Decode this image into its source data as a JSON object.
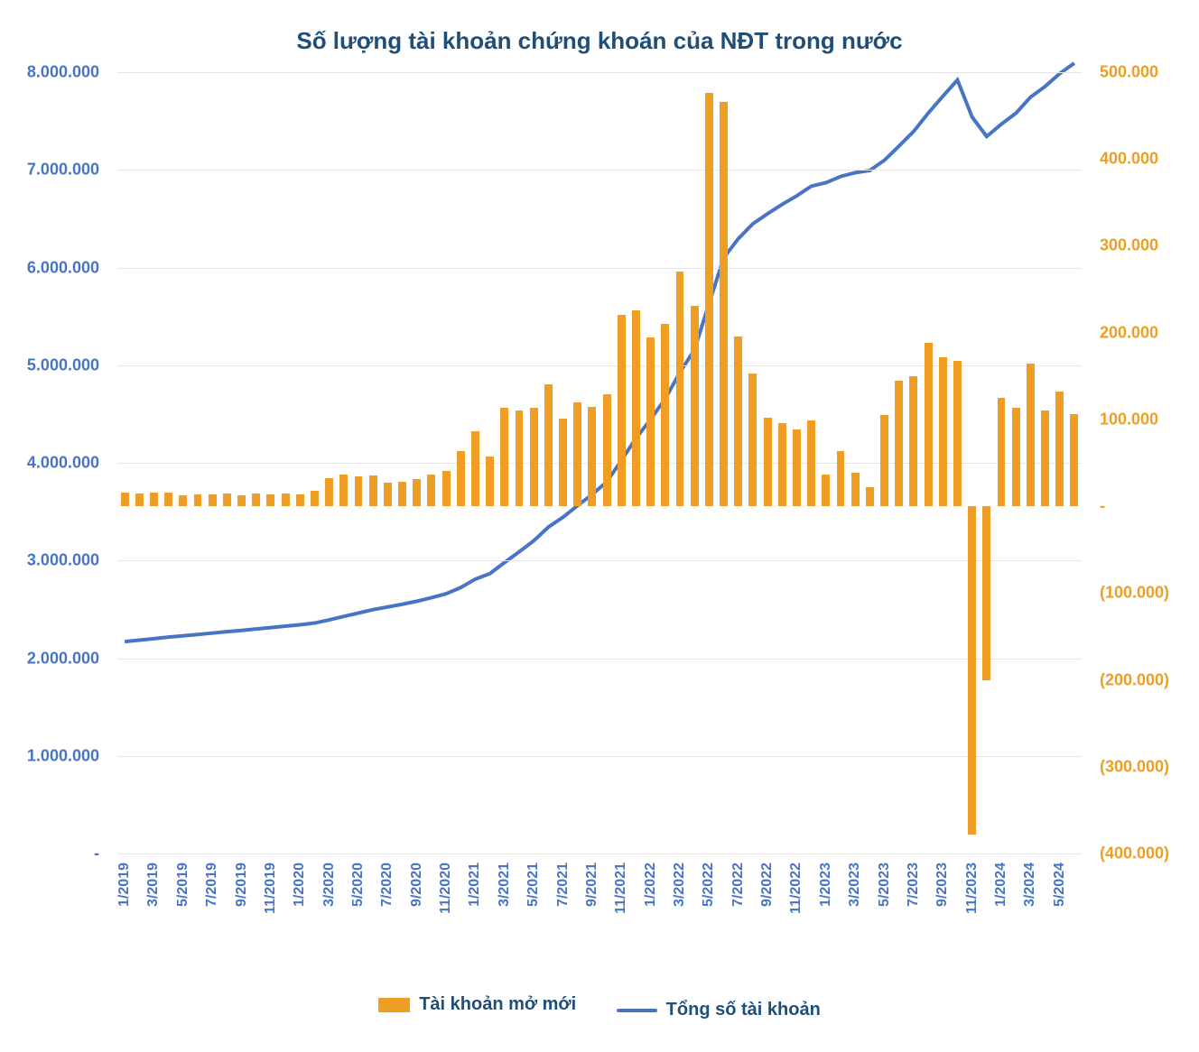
{
  "chart": {
    "type": "combo-bar-line",
    "title": "Số lượng tài khoản chứng khoán của NĐT trong nước",
    "title_color": "#1f4e79",
    "title_fontsize": 26,
    "background_color": "#ffffff",
    "grid_color": "#e5e5e5",
    "categories": [
      "1/2019",
      "2/2019",
      "3/2019",
      "4/2019",
      "5/2019",
      "6/2019",
      "7/2019",
      "8/2019",
      "9/2019",
      "10/2019",
      "11/2019",
      "12/2019",
      "1/2020",
      "2/2020",
      "3/2020",
      "4/2020",
      "5/2020",
      "6/2020",
      "7/2020",
      "8/2020",
      "9/2020",
      "10/2020",
      "11/2020",
      "12/2020",
      "1/2021",
      "2/2021",
      "3/2021",
      "4/2021",
      "5/2021",
      "6/2021",
      "7/2021",
      "8/2021",
      "9/2021",
      "10/2021",
      "11/2021",
      "12/2021",
      "1/2022",
      "2/2022",
      "3/2022",
      "4/2022",
      "5/2022",
      "6/2022",
      "7/2022",
      "8/2022",
      "9/2022",
      "10/2022",
      "11/2022",
      "12/2022",
      "1/2023",
      "2/2023",
      "3/2023",
      "4/2023",
      "5/2023",
      "6/2023",
      "7/2023",
      "8/2023",
      "9/2023",
      "10/2023",
      "11/2023",
      "12/2023",
      "1/2024",
      "2/2024",
      "3/2024",
      "4/2024",
      "5/2024",
      "6/2024"
    ],
    "x_tick_labels_shown": [
      "1/2019",
      "3/2019",
      "5/2019",
      "7/2019",
      "9/2019",
      "11/2019",
      "1/2020",
      "3/2020",
      "5/2020",
      "7/2020",
      "9/2020",
      "11/2020",
      "1/2021",
      "3/2021",
      "5/2021",
      "7/2021",
      "9/2021",
      "11/2021",
      "1/2022",
      "3/2022",
      "5/2022",
      "7/2022",
      "9/2022",
      "11/2022",
      "1/2023",
      "3/2023",
      "5/2023",
      "7/2023",
      "9/2023",
      "11/2023",
      "1/2024",
      "3/2024",
      "5/2024"
    ],
    "x_label_color": "#4874c6",
    "x_label_fontsize": 16,
    "bars": {
      "label": "Tài khoản mở mới",
      "color": "#ed9e23",
      "axis": "right",
      "bar_width_frac": 0.55,
      "values": [
        16000,
        15000,
        15500,
        16000,
        13000,
        14000,
        14000,
        14500,
        13000,
        15000,
        14000,
        14500,
        14000,
        18000,
        32000,
        36000,
        34000,
        35000,
        27000,
        28000,
        31000,
        36000,
        41000,
        63000,
        86000,
        57000,
        113000,
        110000,
        113000,
        140000,
        101000,
        120000,
        114000,
        129000,
        220000,
        226000,
        194000,
        210000,
        270000,
        231000,
        476000,
        466000,
        196000,
        153000,
        102000,
        96000,
        88000,
        99000,
        36000,
        63000,
        39000,
        22000,
        105000,
        145000,
        150000,
        188000,
        172000,
        167000,
        -378000,
        -200000,
        125000,
        113000,
        164000,
        110000,
        132000,
        106000
      ]
    },
    "line": {
      "label": "Tổng số tài khoản",
      "color": "#4874c6",
      "axis": "left",
      "line_width": 4,
      "values": [
        2170000,
        2185000,
        2200000,
        2216000,
        2229000,
        2243000,
        2257000,
        2271000,
        2284000,
        2299000,
        2313000,
        2328000,
        2342000,
        2360000,
        2392000,
        2428000,
        2462000,
        2497000,
        2524000,
        2552000,
        2583000,
        2619000,
        2660000,
        2723000,
        2809000,
        2866000,
        2979000,
        3089000,
        3202000,
        3342000,
        3443000,
        3563000,
        3677000,
        3806000,
        4026000,
        4252000,
        4446000,
        4656000,
        4926000,
        5157000,
        5633000,
        6099000,
        6295000,
        6448000,
        6550000,
        6646000,
        6734000,
        6833000,
        6869000,
        6932000,
        6971000,
        6993000,
        7098000,
        7243000,
        7393000,
        7581000,
        7753000,
        7920000,
        7542000,
        7342000,
        7467000,
        7580000,
        7744000,
        7854000,
        7986000,
        8092000
      ]
    },
    "y_left": {
      "min": 0,
      "max": 8000000,
      "step": 1000000,
      "label_color": "#4874c6",
      "label_fontsize": 18,
      "tick_labels": [
        "-",
        "1.000.000",
        "2.000.000",
        "3.000.000",
        "4.000.000",
        "5.000.000",
        "6.000.000",
        "7.000.000",
        "8.000.000"
      ]
    },
    "y_right": {
      "min": -400000,
      "max": 500000,
      "step": 100000,
      "label_color": "#ed9e23",
      "label_fontsize": 18,
      "tick_labels": [
        "(400.000)",
        "(300.000)",
        "(200.000)",
        "(100.000)",
        "-",
        "100.000",
        "200.000",
        "300.000",
        "400.000",
        "500.000"
      ]
    },
    "legend": {
      "items": [
        {
          "type": "bar",
          "label": "Tài khoản mở mới",
          "color": "#ed9e23"
        },
        {
          "type": "line",
          "label": "Tổng số tài khoản",
          "color": "#4874c6"
        }
      ],
      "text_color": "#1f4e79",
      "fontsize": 20
    }
  }
}
